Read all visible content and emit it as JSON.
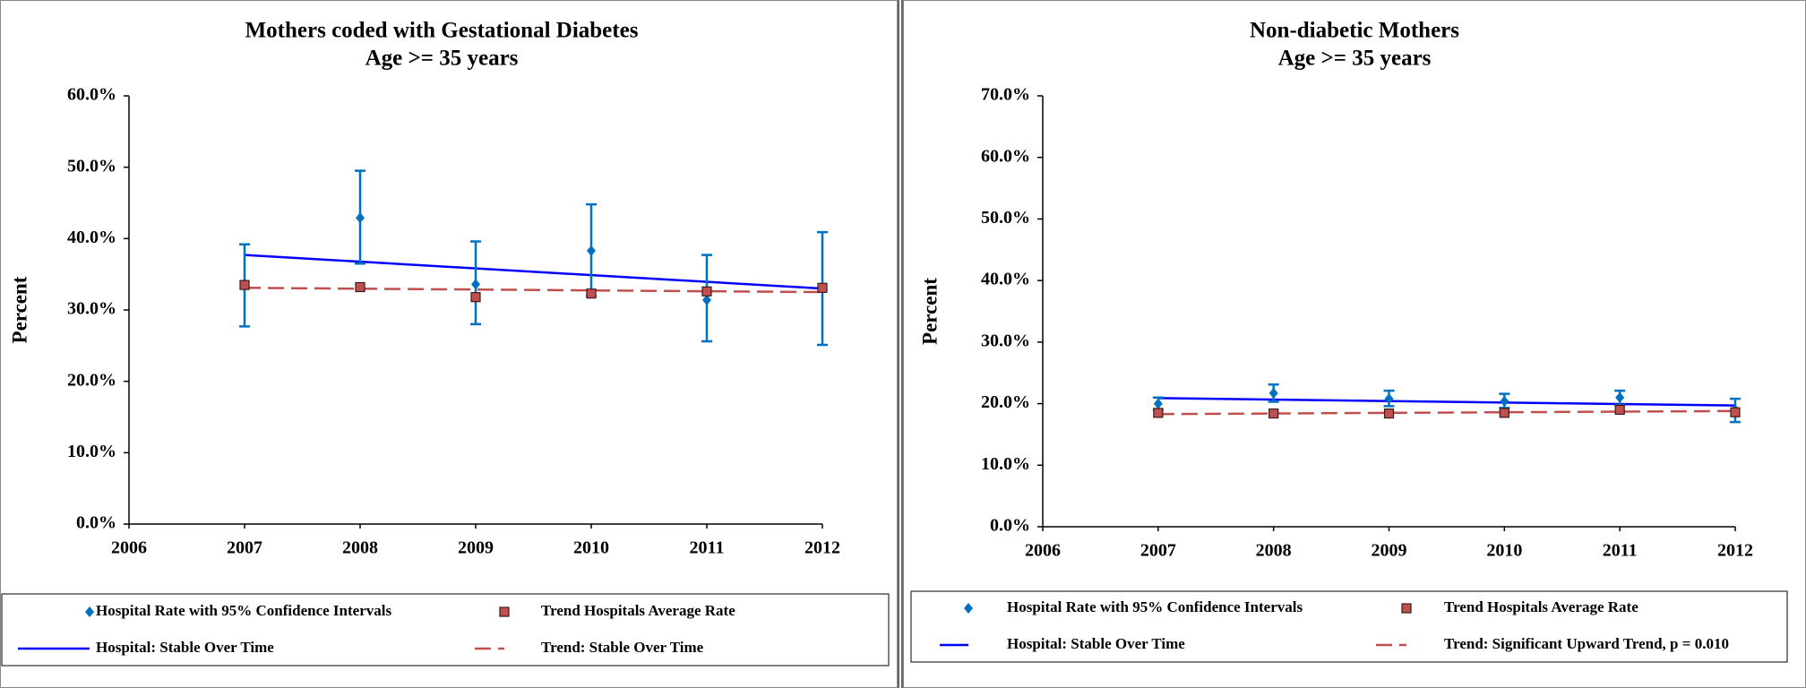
{
  "chart_data": [
    {
      "type": "line",
      "title": "Mothers coded with Gestational Diabetes",
      "subtitle": "Age >= 35 years",
      "y_label": "Percent",
      "xlim": [
        2006,
        2012
      ],
      "xticks": [
        2006,
        2007,
        2008,
        2009,
        2010,
        2011,
        2012
      ],
      "ylim": [
        0,
        60
      ],
      "yticks": [
        {
          "value": 0,
          "label": "0.0%"
        },
        {
          "value": 10,
          "label": "10.0%"
        },
        {
          "value": 20,
          "label": "20.0%"
        },
        {
          "value": 30,
          "label": "30.0%"
        },
        {
          "value": 40,
          "label": "40.0%"
        },
        {
          "value": 50,
          "label": "50.0%"
        },
        {
          "value": 60,
          "label": "60.0%"
        }
      ],
      "series": [
        {
          "name": "Hospital Rate with 95% Confidence Intervals",
          "color": "#0070c0",
          "marker": "diamond",
          "x": [
            2007,
            2008,
            2009,
            2010,
            2011,
            2012
          ],
          "values": [
            33.5,
            42.9,
            33.6,
            38.3,
            31.4,
            33.0
          ],
          "ci_low": [
            27.7,
            36.5,
            28.0,
            32.0,
            25.6,
            25.1
          ],
          "ci_high": [
            39.2,
            49.5,
            39.6,
            44.8,
            37.7,
            40.9
          ]
        },
        {
          "name": "Trend Hospitals Average Rate",
          "color": "#c0504d",
          "marker": "square",
          "x": [
            2007,
            2008,
            2009,
            2010,
            2011,
            2012
          ],
          "values": [
            33.5,
            33.2,
            31.8,
            32.3,
            32.6,
            33.1
          ]
        },
        {
          "name": "Hospital: Stable Over Time",
          "color": "#0000ff",
          "line": "solid",
          "x": [
            2007,
            2012
          ],
          "values": [
            37.7,
            33.0
          ]
        },
        {
          "name": "Trend: Stable Over Time",
          "color": "#c0504d",
          "line": "dashed",
          "x": [
            2007,
            2012
          ],
          "values": [
            33.1,
            32.5
          ]
        }
      ]
    },
    {
      "type": "line",
      "title": "Non-diabetic Mothers",
      "subtitle": "Age >= 35 years",
      "y_label": "Percent",
      "xlim": [
        2006,
        2012
      ],
      "xticks": [
        2006,
        2007,
        2008,
        2009,
        2010,
        2011,
        2012
      ],
      "ylim": [
        0,
        70
      ],
      "yticks": [
        {
          "value": 0,
          "label": "0.0%"
        },
        {
          "value": 10,
          "label": "10.0%"
        },
        {
          "value": 20,
          "label": "20.0%"
        },
        {
          "value": 30,
          "label": "30.0%"
        },
        {
          "value": 40,
          "label": "40.0%"
        },
        {
          "value": 50,
          "label": "50.0%"
        },
        {
          "value": 60,
          "label": "60.0%"
        },
        {
          "value": 70,
          "label": "70.0%"
        }
      ],
      "series": [
        {
          "name": "Hospital Rate with 95% Confidence Intervals",
          "color": "#0070c0",
          "marker": "diamond",
          "x": [
            2007,
            2008,
            2009,
            2010,
            2011,
            2012
          ],
          "values": [
            20.0,
            21.7,
            20.8,
            20.4,
            21.0,
            19.0
          ],
          "ci_low": [
            19.0,
            20.3,
            19.6,
            19.3,
            19.8,
            17.0
          ],
          "ci_high": [
            21.0,
            23.1,
            22.1,
            21.6,
            22.1,
            20.8
          ]
        },
        {
          "name": "Trend Hospitals Average Rate",
          "color": "#c0504d",
          "marker": "square",
          "x": [
            2007,
            2008,
            2009,
            2010,
            2011,
            2012
          ],
          "values": [
            18.5,
            18.4,
            18.4,
            18.5,
            19.0,
            18.6
          ]
        },
        {
          "name": "Hospital: Stable Over Time",
          "color": "#0000ff",
          "line": "solid",
          "x": [
            2007,
            2012
          ],
          "values": [
            20.9,
            19.7
          ]
        },
        {
          "name": "Trend: Significant Upward Trend, p = 0.010",
          "color": "#c0504d",
          "line": "dashed",
          "x": [
            2007,
            2012
          ],
          "values": [
            18.3,
            18.8
          ]
        }
      ]
    }
  ]
}
